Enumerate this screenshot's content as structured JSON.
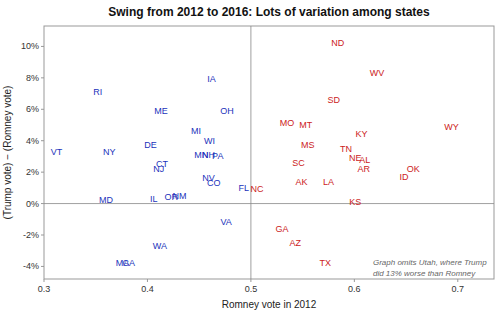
{
  "chart_data": {
    "type": "scatter",
    "title": "Swing from 2012 to 2016:  Lots of variation among states",
    "x_label": "Romney vote in 2012",
    "y_label": "(Trump vote) − (Romney vote)",
    "xlim": [
      0.3,
      0.735
    ],
    "ylim": [
      -0.048,
      0.113
    ],
    "xticks": [
      0.3,
      0.4,
      0.5,
      0.6,
      0.7
    ],
    "yticks": [
      {
        "value": -0.04,
        "label": "-4%"
      },
      {
        "value": -0.02,
        "label": "-2%"
      },
      {
        "value": 0.0,
        "label": "0%"
      },
      {
        "value": 0.02,
        "label": "2%"
      },
      {
        "value": 0.04,
        "label": "4%"
      },
      {
        "value": 0.06,
        "label": "6%"
      },
      {
        "value": 0.08,
        "label": "8%"
      },
      {
        "value": 0.1,
        "label": "10%"
      }
    ],
    "grid": false,
    "reference_lines": [
      {
        "axis": "y",
        "value": 0.0
      },
      {
        "axis": "x",
        "value": 0.5
      }
    ],
    "annotations": [
      {
        "text": "Graph omits Utah, where Trump\ndid 13% worse than Romney",
        "x": 0.618,
        "y": -0.034
      }
    ],
    "series": [
      {
        "color": "#2233bb",
        "marker": "label",
        "labels": [
          "VT",
          "RI",
          "NY",
          "MD",
          "MA",
          "CA",
          "DE",
          "WA",
          "ME",
          "IL",
          "NJ",
          "CT",
          "OR",
          "NM",
          "MI",
          "WI",
          "MN",
          "NH",
          "PA",
          "NV",
          "CO",
          "IA",
          "OH",
          "FL",
          "VA"
        ],
        "x": [
          0.312,
          0.352,
          0.363,
          0.36,
          0.376,
          0.382,
          0.403,
          0.412,
          0.413,
          0.406,
          0.411,
          0.414,
          0.423,
          0.431,
          0.447,
          0.46,
          0.452,
          0.459,
          0.468,
          0.459,
          0.464,
          0.462,
          0.477,
          0.493,
          0.476
        ],
        "values": [
          0.033,
          0.071,
          0.033,
          0.002,
          -0.038,
          -0.038,
          0.037,
          -0.027,
          0.059,
          0.003,
          0.022,
          0.025,
          0.004,
          0.005,
          0.046,
          0.04,
          0.031,
          0.031,
          0.03,
          0.016,
          0.013,
          0.079,
          0.059,
          0.01,
          -0.012
        ]
      },
      {
        "color": "#cc2222",
        "marker": "label",
        "labels": [
          "NC",
          "ND",
          "WV",
          "SD",
          "WY",
          "MO",
          "MT",
          "KY",
          "MS",
          "TN",
          "AL",
          "NE",
          "SC",
          "AR",
          "AK",
          "LA",
          "OK",
          "ID",
          "KS",
          "GA",
          "AZ",
          "TX"
        ],
        "x": [
          0.506,
          0.584,
          0.622,
          0.58,
          0.694,
          0.535,
          0.553,
          0.607,
          0.555,
          0.592,
          0.61,
          0.601,
          0.546,
          0.609,
          0.549,
          0.575,
          0.657,
          0.648,
          0.601,
          0.53,
          0.543,
          0.572
        ],
        "values": [
          0.009,
          0.102,
          0.083,
          0.066,
          0.049,
          0.051,
          0.05,
          0.044,
          0.037,
          0.035,
          0.028,
          0.029,
          0.026,
          0.022,
          0.014,
          0.014,
          0.022,
          0.017,
          0.001,
          -0.016,
          -0.025,
          -0.038
        ]
      }
    ]
  }
}
